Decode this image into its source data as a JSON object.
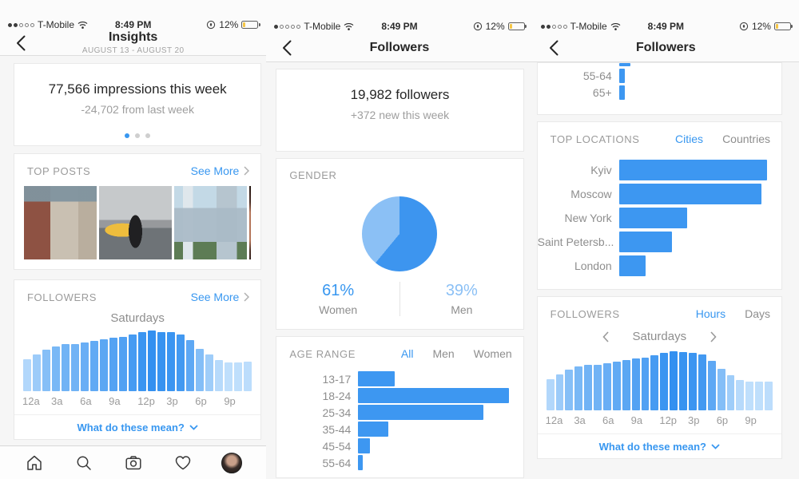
{
  "colors": {
    "accent_blue": "#3897f0",
    "light_blue": "#8bc0f5",
    "hbar_blue": "#3d97f1",
    "hour_bar_min": "#bfdffc",
    "hour_bar_max": "#3390f0",
    "battery_yellow": "#f5c646",
    "text_dark": "#262626",
    "text_gray": "#8e8e8e"
  },
  "status_bar": {
    "carrier": "T-Mobile",
    "time": "8:49 PM",
    "battery_pct": "12%",
    "signal_filled": [
      2,
      1,
      2
    ]
  },
  "insights_panel": {
    "title": "Insights",
    "date_range": "AUGUST 13 - AUGUST 20",
    "summary": {
      "headline": "77,566 impressions this week",
      "delta": "-24,702 from last week",
      "page_dot_count": 3,
      "active_dot": 1
    },
    "top_posts": {
      "header": "TOP POSTS",
      "see_more": "See More"
    },
    "followers": {
      "header": "FOLLOWERS",
      "see_more": "See More",
      "hint": "What do these mean?"
    }
  },
  "followers_panel": {
    "title": "Followers",
    "summary": {
      "headline": "19,982 followers",
      "delta": "+372 new this week"
    },
    "gender_header": "GENDER",
    "age_header": "AGE RANGE"
  },
  "locations_panel": {
    "title": "Followers",
    "locations_header": "TOP LOCATIONS",
    "followers_header": "FOLLOWERS",
    "hint": "What do these mean?"
  },
  "chart_data": [
    {
      "id": "hourly_followers",
      "type": "bar",
      "title": "Saturdays",
      "x_tick_labels": [
        "12a",
        "3a",
        "6a",
        "9a",
        "12p",
        "3p",
        "6p",
        "9p"
      ],
      "x": "hour of day (24 bars)",
      "ylabel": "follower activity (% of peak, no numeric axis shown)",
      "values": [
        53,
        61,
        69,
        74,
        77,
        77,
        80,
        83,
        85,
        88,
        89,
        93,
        97,
        100,
        98,
        97,
        94,
        84,
        70,
        60,
        51,
        48,
        48,
        49
      ]
    },
    {
      "id": "gender_pie",
      "type": "pie",
      "colors": [
        "#3d95ef",
        "#8bc0f5"
      ],
      "slices": [
        {
          "label": "Women",
          "value": 61,
          "pct_label": "61%"
        },
        {
          "label": "Men",
          "value": 39,
          "pct_label": "39%"
        }
      ]
    },
    {
      "id": "age_range",
      "type": "bar-horizontal",
      "tabs": [
        "All",
        "Men",
        "Women"
      ],
      "selected_tab": "All",
      "categories": [
        "13-17",
        "18-24",
        "25-34",
        "35-44",
        "45-54",
        "55-64"
      ],
      "values": [
        24,
        100,
        83,
        20,
        8,
        3
      ],
      "unit": "% of largest bar (no numeric axis shown)"
    },
    {
      "id": "age_range_continued",
      "type": "bar-horizontal",
      "categories": [
        "55-64",
        "65+"
      ],
      "values": [
        4,
        4
      ],
      "cut_bar_pct": 8
    },
    {
      "id": "top_locations",
      "type": "bar-horizontal",
      "tabs": [
        "Cities",
        "Countries"
      ],
      "selected_tab": "Cities",
      "categories": [
        "Kyiv",
        "Moscow",
        "New York",
        "Saint Petersb...",
        "London"
      ],
      "values": [
        100,
        96,
        46,
        36,
        18
      ],
      "unit": "% of largest bar (no numeric axis shown)"
    },
    {
      "id": "hourly_followers_2",
      "type": "bar",
      "title": "Saturdays",
      "tabs": [
        "Hours",
        "Days"
      ],
      "selected_tab": "Hours",
      "x_tick_labels": [
        "12a",
        "3a",
        "6a",
        "9a",
        "12p",
        "3p",
        "6p",
        "9p"
      ],
      "values": [
        53,
        61,
        69,
        74,
        77,
        77,
        80,
        83,
        85,
        88,
        89,
        93,
        97,
        100,
        98,
        97,
        94,
        84,
        70,
        60,
        51,
        48,
        48,
        49
      ]
    }
  ]
}
